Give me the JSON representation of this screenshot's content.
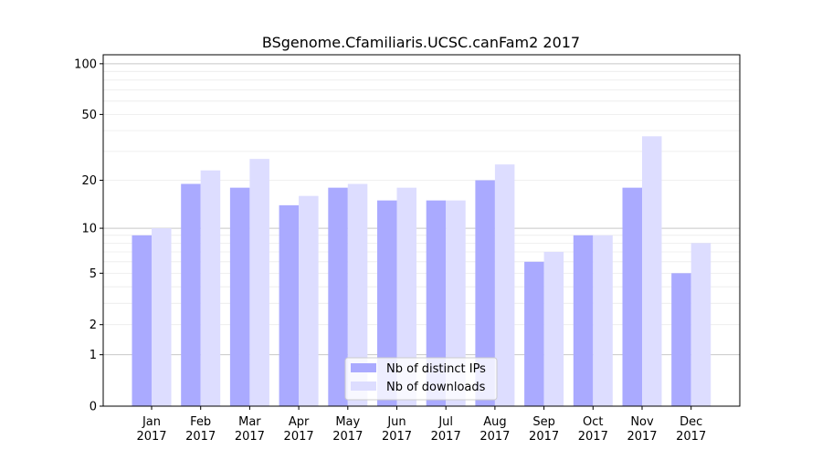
{
  "chart_data": {
    "type": "bar",
    "title": "BSgenome.Cfamiliaris.UCSC.canFam2 2017",
    "xlabel": "",
    "ylabel": "",
    "y_scale": "log(1+x)",
    "ylim": [
      0,
      113
    ],
    "y_ticks": [
      0,
      1,
      2,
      5,
      10,
      20,
      50,
      100
    ],
    "grid": true,
    "legend_position": "bottom-center",
    "categories": [
      "Jan\n2017",
      "Feb\n2017",
      "Mar\n2017",
      "Apr\n2017",
      "May\n2017",
      "Jun\n2017",
      "Jul\n2017",
      "Aug\n2017",
      "Sep\n2017",
      "Oct\n2017",
      "Nov\n2017",
      "Dec\n2017"
    ],
    "series": [
      {
        "name": "Nb of distinct IPs",
        "color": "#aaaaff",
        "values": [
          9,
          19,
          18,
          14,
          18,
          15,
          15,
          20,
          6,
          9,
          18,
          5
        ]
      },
      {
        "name": "Nb of downloads",
        "color": "#ddddff",
        "values": [
          10,
          23,
          27,
          16,
          19,
          18,
          15,
          25,
          7,
          9,
          37,
          8
        ]
      }
    ]
  }
}
